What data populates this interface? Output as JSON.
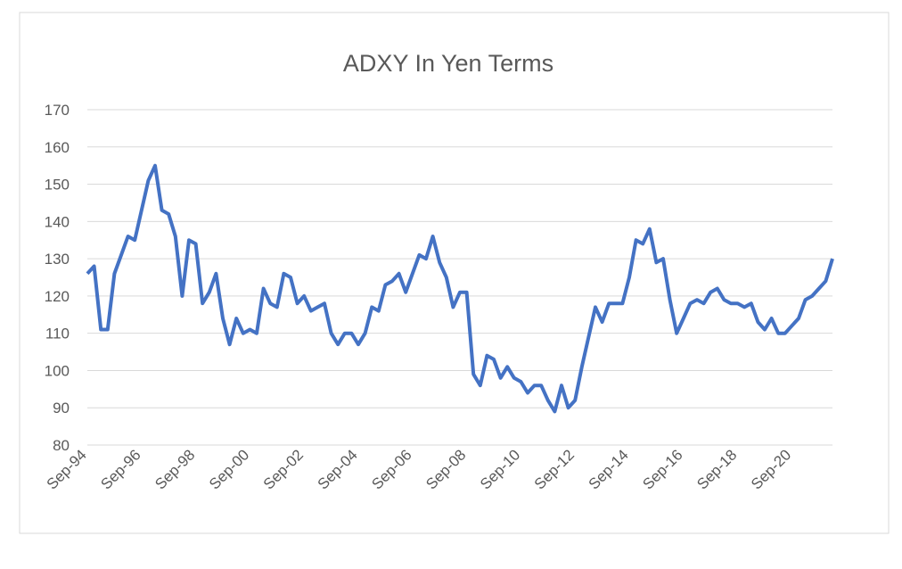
{
  "chart_data": {
    "type": "line",
    "title": "ADXY In Yen Terms",
    "categories": [
      "Sep-94",
      null,
      null,
      null,
      null,
      null,
      null,
      null,
      "Sep-96",
      null,
      null,
      null,
      null,
      null,
      null,
      null,
      "Sep-98",
      null,
      null,
      null,
      null,
      null,
      null,
      null,
      "Sep-00",
      null,
      null,
      null,
      null,
      null,
      null,
      null,
      "Sep-02",
      null,
      null,
      null,
      null,
      null,
      null,
      null,
      "Sep-04",
      null,
      null,
      null,
      null,
      null,
      null,
      null,
      "Sep-06",
      null,
      null,
      null,
      null,
      null,
      null,
      null,
      "Sep-08",
      null,
      null,
      null,
      null,
      null,
      null,
      null,
      "Sep-10",
      null,
      null,
      null,
      null,
      null,
      null,
      null,
      "Sep-12",
      null,
      null,
      null,
      null,
      null,
      null,
      null,
      "Sep-14",
      null,
      null,
      null,
      null,
      null,
      null,
      null,
      "Sep-16",
      null,
      null,
      null,
      null,
      null,
      null,
      null,
      "Sep-18",
      null,
      null,
      null,
      null,
      null,
      null,
      null,
      "Sep-20",
      null,
      null,
      null,
      null,
      null,
      null
    ],
    "series": [
      {
        "color": "#4472c4",
        "values": [
          126,
          128,
          111,
          111,
          126,
          131,
          136,
          135,
          143,
          151,
          155,
          143,
          142,
          136,
          120,
          135,
          134,
          118,
          121,
          126,
          114,
          107,
          114,
          110,
          111,
          110,
          122,
          118,
          117,
          126,
          125,
          118,
          120,
          116,
          117,
          118,
          110,
          107,
          110,
          110,
          107,
          110,
          117,
          116,
          123,
          124,
          126,
          121,
          126,
          131,
          130,
          136,
          129,
          125,
          117,
          121,
          121,
          99,
          96,
          104,
          103,
          98,
          101,
          98,
          97,
          94,
          96,
          96,
          92,
          89,
          96,
          90,
          92,
          101,
          109,
          117,
          113,
          118,
          118,
          118,
          125,
          135,
          134,
          138,
          129,
          130,
          119,
          110,
          114,
          118,
          119,
          118,
          121,
          122,
          119,
          118,
          118,
          117,
          118,
          113,
          111,
          114,
          110,
          110,
          112,
          114,
          119,
          120,
          122,
          124,
          130
        ]
      }
    ],
    "ylim": [
      80,
      170
    ],
    "yticks": [
      80,
      90,
      100,
      110,
      120,
      130,
      140,
      150,
      160,
      170
    ],
    "grid": true
  }
}
